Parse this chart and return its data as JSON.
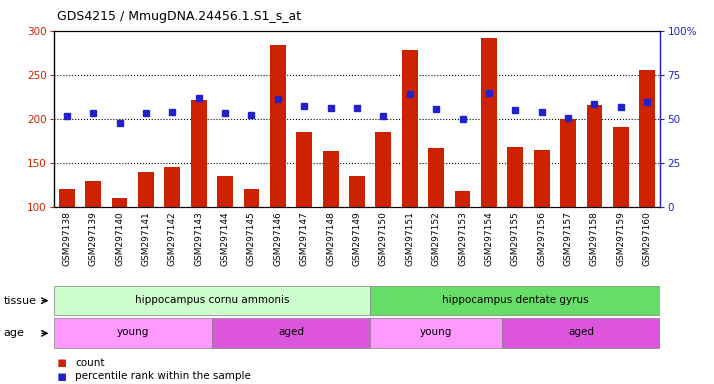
{
  "title": "GDS4215 / MmugDNA.24456.1.S1_s_at",
  "samples": [
    "GSM297138",
    "GSM297139",
    "GSM297140",
    "GSM297141",
    "GSM297142",
    "GSM297143",
    "GSM297144",
    "GSM297145",
    "GSM297146",
    "GSM297147",
    "GSM297148",
    "GSM297149",
    "GSM297150",
    "GSM297151",
    "GSM297152",
    "GSM297153",
    "GSM297154",
    "GSM297155",
    "GSM297156",
    "GSM297157",
    "GSM297158",
    "GSM297159",
    "GSM297160"
  ],
  "counts": [
    121,
    130,
    111,
    140,
    146,
    221,
    136,
    121,
    284,
    185,
    164,
    135,
    185,
    278,
    167,
    118,
    292,
    168,
    165,
    200,
    216,
    191,
    255
  ],
  "percentiles": [
    51.5,
    53.5,
    48.0,
    53.5,
    54.0,
    62.0,
    53.5,
    52.5,
    61.5,
    57.5,
    56.5,
    56.5,
    52.0,
    64.0,
    55.5,
    50.0,
    64.5,
    55.0,
    54.0,
    50.5,
    58.5,
    57.0,
    59.5
  ],
  "bar_color": "#cc2200",
  "dot_color": "#2222cc",
  "ylim_left": [
    100,
    300
  ],
  "ylim_right": [
    0,
    100
  ],
  "yticks_left": [
    100,
    150,
    200,
    250,
    300
  ],
  "yticks_right": [
    0,
    25,
    50,
    75,
    100
  ],
  "ytick_labels_right": [
    "0",
    "25",
    "50",
    "75",
    "100%"
  ],
  "tissue_groups": [
    {
      "label": "hippocampus cornu ammonis",
      "start": 0,
      "end": 12,
      "color": "#ccffcc"
    },
    {
      "label": "hippocampus dentate gyrus",
      "start": 12,
      "end": 23,
      "color": "#66dd66"
    }
  ],
  "age_groups": [
    {
      "label": "young",
      "start": 0,
      "end": 6,
      "color": "#ff99ff"
    },
    {
      "label": "aged",
      "start": 6,
      "end": 12,
      "color": "#dd55dd"
    },
    {
      "label": "young",
      "start": 12,
      "end": 17,
      "color": "#ff99ff"
    },
    {
      "label": "aged",
      "start": 17,
      "end": 23,
      "color": "#dd55dd"
    }
  ],
  "legend_count_label": "count",
  "legend_pct_label": "percentile rank within the sample",
  "bg_color": "#ffffff",
  "plot_bg": "#ffffff",
  "xtick_bg": "#d8d8d8"
}
